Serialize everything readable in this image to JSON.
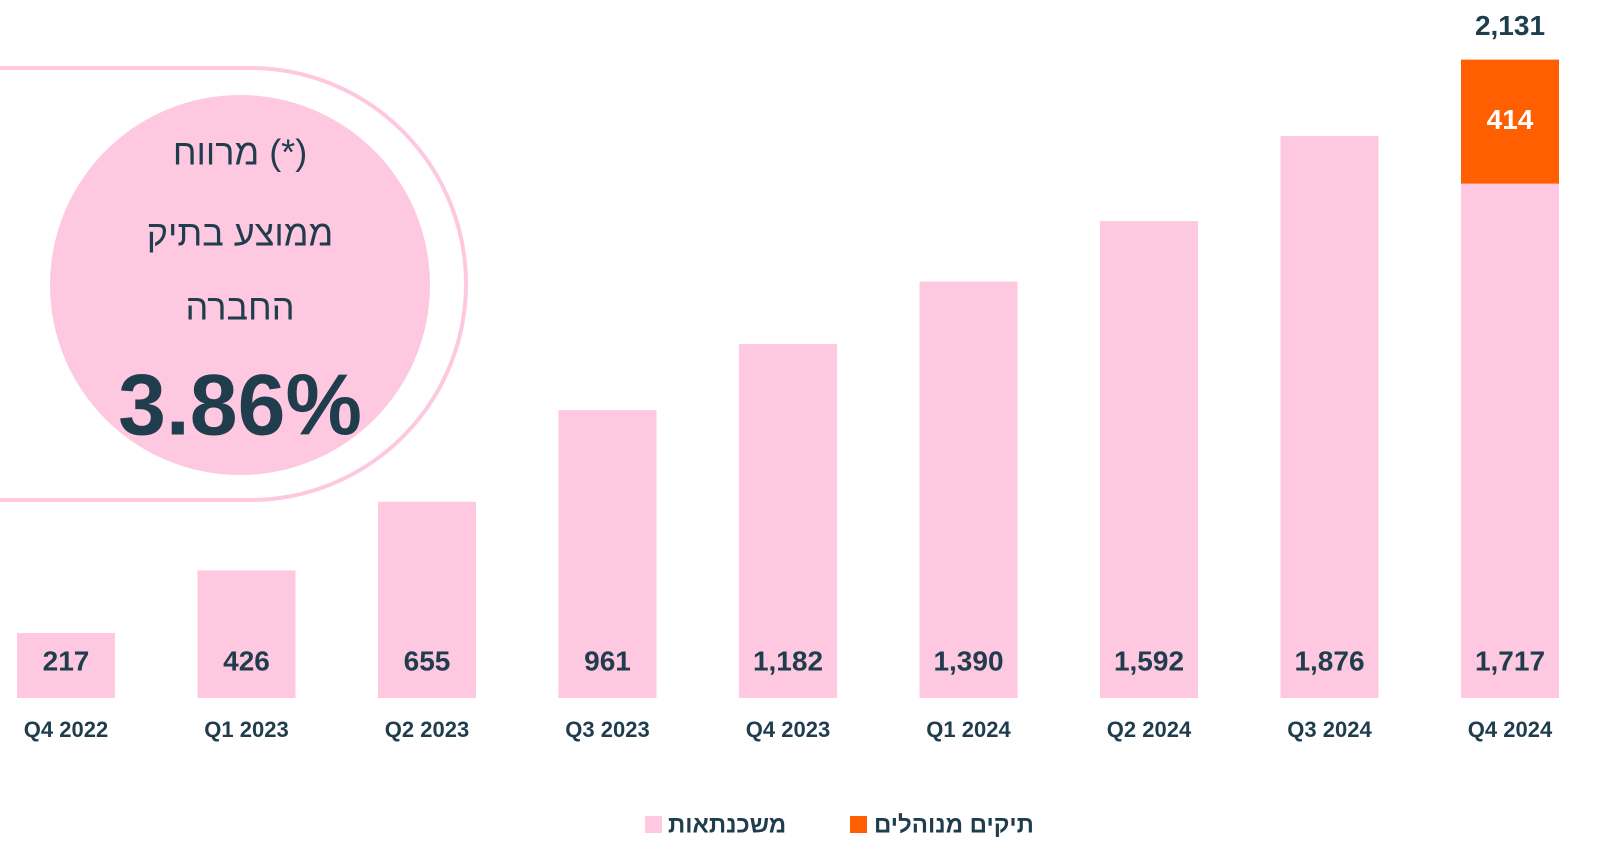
{
  "chart_data": {
    "type": "stacked_bar",
    "categories": [
      "Q4 2022",
      "Q1 2023",
      "Q2 2023",
      "Q3 2023",
      "Q4 2023",
      "Q1 2024",
      "Q2 2024",
      "Q3 2024",
      "Q4 2024"
    ],
    "series": [
      {
        "name": "משכנתאות",
        "color": "#ffc8e1",
        "values": [
          217,
          426,
          655,
          961,
          1182,
          1390,
          1592,
          1876,
          1717
        ],
        "value_labels": [
          "217",
          "426",
          "655",
          "961",
          "1,182",
          "1,390",
          "1,592",
          "1,876",
          "1,717"
        ]
      },
      {
        "name": "תיקים מנוהלים",
        "color": "#ff5f00",
        "values": [
          null,
          null,
          null,
          null,
          null,
          null,
          null,
          null,
          414
        ]
      }
    ],
    "totals": [
      null,
      null,
      null,
      null,
      null,
      null,
      null,
      null,
      2131
    ],
    "total_labels": [
      null,
      null,
      null,
      null,
      null,
      null,
      null,
      null,
      "2,131"
    ],
    "ylim": [
      0,
      2300
    ],
    "callout": {
      "lines": [
        "מרווח (*)",
        "ממוצע בתיק",
        "החברה"
      ],
      "highlight": "3.86%"
    }
  }
}
